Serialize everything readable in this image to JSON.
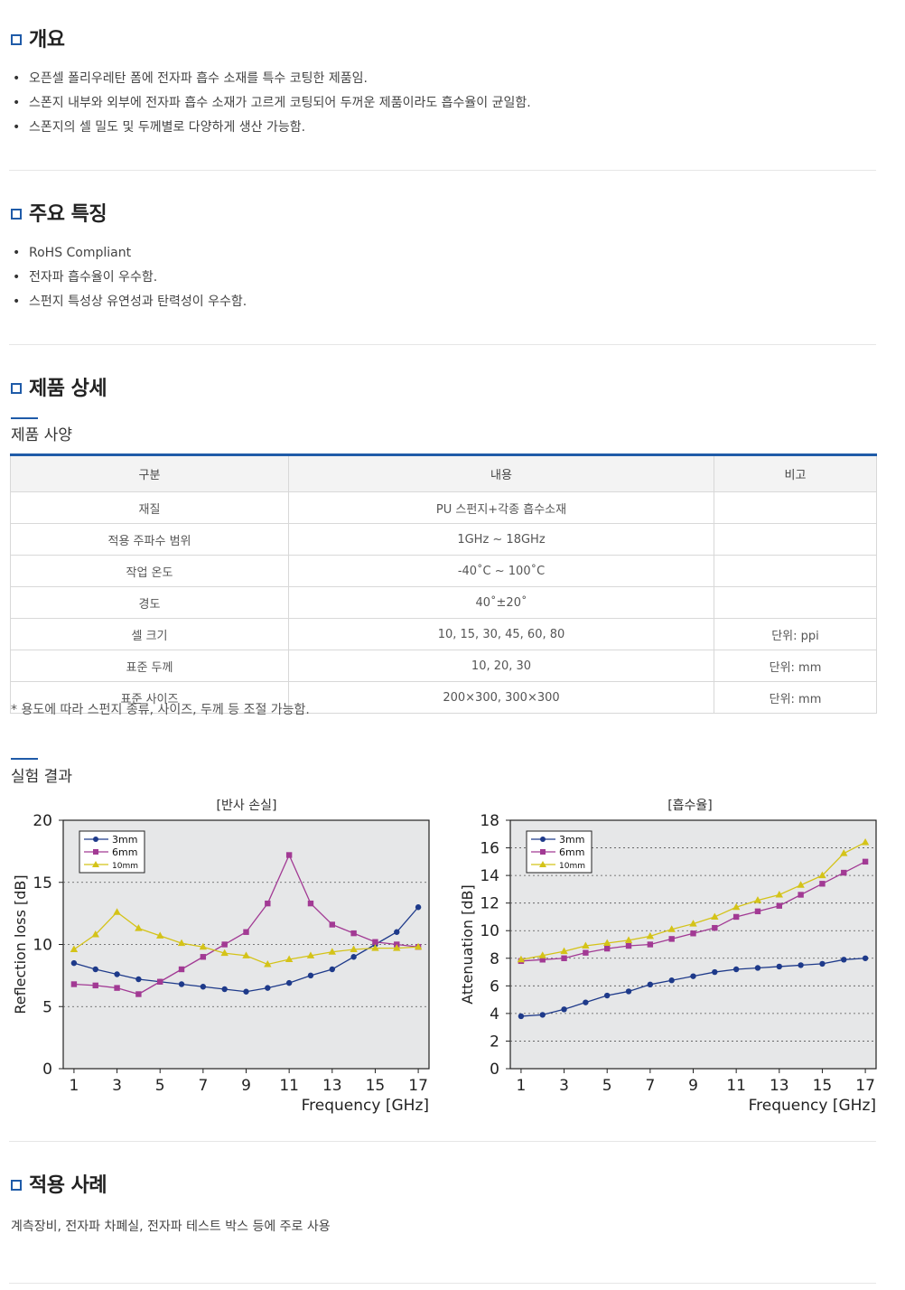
{
  "overview": {
    "title": "개요",
    "bullets": [
      "오픈셀 폴리우레탄 폼에 전자파 흡수 소재를 특수 코팅한 제품임.",
      "스폰지 내부와 외부에 전자파 흡수 소재가 고르게 코팅되어 두꺼운 제품이라도 흡수율이 균일함.",
      "스폰지의 셀 밀도 및 두께별로 다양하게 생산 가능함."
    ]
  },
  "features": {
    "title": "주요 특징",
    "bullets": [
      "RoHS Compliant",
      "전자파 흡수율이 우수함.",
      "스펀지 특성상 유연성과 탄력성이 우수함."
    ]
  },
  "detail": {
    "title": "제품 상세",
    "spec_title": "제품 사양",
    "table": {
      "headers": [
        "구분",
        "내용",
        "비고"
      ],
      "rows": [
        [
          "재질",
          "PU 스펀지+각종 흡수소재",
          ""
        ],
        [
          "적용 주파수 범위",
          "1GHz ~ 18GHz",
          ""
        ],
        [
          "작업 온도",
          "-40˚C ~ 100˚C",
          ""
        ],
        [
          "경도",
          "40˚±20˚",
          ""
        ],
        [
          "셀 크기",
          "10, 15, 30, 45, 60, 80",
          "단위: ppi"
        ],
        [
          "표준 두께",
          "10, 20, 30",
          "단위: mm"
        ],
        [
          "표준 사이즈",
          "200×300, 300×300",
          "단위: mm"
        ]
      ]
    },
    "note": "* 용도에 따라 스펀지 종류, 사이즈, 두께 등 조절 가능함.",
    "result_title": "실험 결과"
  },
  "chart_data": [
    {
      "type": "line",
      "title": "[반사 손실]",
      "xlabel": "Frequency [GHz]",
      "ylabel": "Reflection loss [dB]",
      "x": [
        1,
        2,
        3,
        4,
        5,
        6,
        7,
        8,
        9,
        10,
        11,
        12,
        13,
        14,
        15,
        16,
        17
      ],
      "xticks": [
        1,
        3,
        5,
        7,
        9,
        11,
        13,
        15,
        17
      ],
      "yticks": [
        0,
        5,
        10,
        15,
        20
      ],
      "xlim": [
        0.5,
        17.5
      ],
      "ylim": [
        0,
        20
      ],
      "grid": "dashed horizontal",
      "legend": "top-left",
      "series": [
        {
          "name": "3mm",
          "color": "#1e3a8a",
          "marker": "circle",
          "values": [
            8.5,
            8.0,
            7.6,
            7.2,
            7.0,
            6.8,
            6.6,
            6.4,
            6.2,
            6.5,
            6.9,
            7.5,
            8.0,
            9.0,
            10.0,
            11.0,
            13.0
          ]
        },
        {
          "name": "6mm",
          "color": "#a23a94",
          "marker": "square",
          "values": [
            6.8,
            6.7,
            6.5,
            6.0,
            7.0,
            8.0,
            9.0,
            10.0,
            11.0,
            13.3,
            17.2,
            13.3,
            11.6,
            10.9,
            10.2,
            10.0,
            9.8
          ]
        },
        {
          "name": "10mm",
          "color": "#d4c318",
          "marker": "triangle",
          "values": [
            9.6,
            10.8,
            12.6,
            11.3,
            10.7,
            10.1,
            9.8,
            9.3,
            9.1,
            8.4,
            8.8,
            9.1,
            9.4,
            9.6,
            9.7,
            9.7,
            9.8
          ]
        }
      ]
    },
    {
      "type": "line",
      "title": "[흡수율]",
      "xlabel": "Frequency [GHz]",
      "ylabel": "Attenuation [dB]",
      "x": [
        1,
        2,
        3,
        4,
        5,
        6,
        7,
        8,
        9,
        10,
        11,
        12,
        13,
        14,
        15,
        16,
        17
      ],
      "xticks": [
        1,
        3,
        5,
        7,
        9,
        11,
        13,
        15,
        17
      ],
      "yticks": [
        0,
        2,
        4,
        6,
        8,
        10,
        12,
        14,
        16,
        18
      ],
      "xlim": [
        0.5,
        17.5
      ],
      "ylim": [
        0,
        18
      ],
      "grid": "dashed horizontal",
      "legend": "top-left",
      "series": [
        {
          "name": "3mm",
          "color": "#1e3a8a",
          "marker": "circle",
          "values": [
            3.8,
            3.9,
            4.3,
            4.8,
            5.3,
            5.6,
            6.1,
            6.4,
            6.7,
            7.0,
            7.2,
            7.3,
            7.4,
            7.5,
            7.6,
            7.9,
            8.0
          ]
        },
        {
          "name": "6mm",
          "color": "#a23a94",
          "marker": "square",
          "values": [
            7.8,
            7.9,
            8.0,
            8.4,
            8.7,
            8.9,
            9.0,
            9.4,
            9.8,
            10.2,
            11.0,
            11.4,
            11.8,
            12.6,
            13.4,
            14.2,
            15.0
          ]
        },
        {
          "name": "10mm",
          "color": "#d4c318",
          "marker": "triangle",
          "values": [
            7.9,
            8.2,
            8.5,
            8.9,
            9.1,
            9.3,
            9.6,
            10.1,
            10.5,
            11.0,
            11.7,
            12.2,
            12.6,
            13.3,
            14.0,
            15.6,
            16.4
          ]
        }
      ]
    }
  ],
  "application": {
    "title": "적용 사례",
    "text": "계측장비, 전자파 차폐실, 전자파 테스트 박스 등에 주로 사용"
  }
}
